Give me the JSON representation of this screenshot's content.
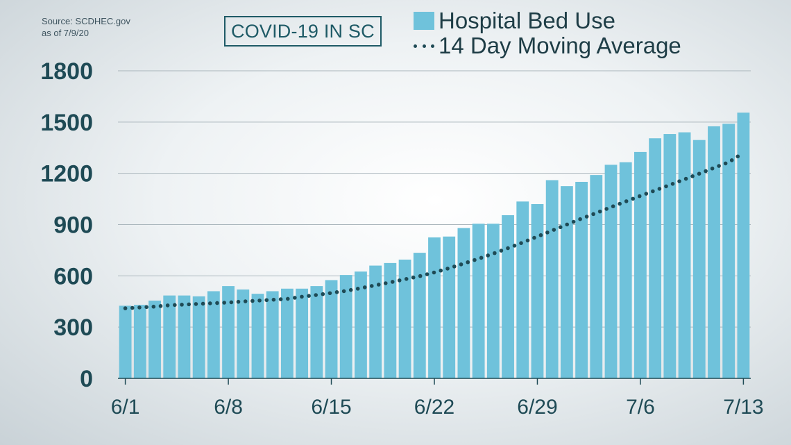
{
  "source_line1": "Source: SCDHEC.gov",
  "source_line2": "as of 7/9/20",
  "title": "COVID-19 IN SC",
  "colors": {
    "bar": "#6fc2db",
    "average": "#1e4a55",
    "axis_text": "#1e4a55",
    "grid": "#aab6bc"
  },
  "chart_data": {
    "type": "bar",
    "ylim": [
      0,
      1800
    ],
    "yticks": [
      0,
      300,
      600,
      900,
      1200,
      1500,
      1800
    ],
    "x_tick_labels": [
      "6/1",
      "6/8",
      "6/15",
      "6/22",
      "6/29",
      "7/6",
      "7/13"
    ],
    "x_tick_indices": [
      0,
      7,
      14,
      21,
      28,
      35,
      42
    ],
    "grid": true,
    "legend_position": "top",
    "series": [
      {
        "name": "Hospital Bed Use",
        "type": "bar",
        "values": [
          425,
          430,
          455,
          485,
          485,
          480,
          510,
          540,
          520,
          495,
          510,
          525,
          525,
          540,
          575,
          605,
          625,
          660,
          675,
          695,
          735,
          825,
          830,
          880,
          905,
          905,
          955,
          1035,
          1020,
          1160,
          1125,
          1150,
          1190,
          1250,
          1265,
          1325,
          1405,
          1430,
          1440,
          1395,
          1475,
          1490,
          1555
        ]
      },
      {
        "name": "14 Day Moving Average",
        "type": "line",
        "style": "dotted",
        "values": [
          410,
          415,
          420,
          428,
          432,
          436,
          440,
          444,
          450,
          455,
          460,
          465,
          478,
          488,
          500,
          512,
          528,
          545,
          562,
          580,
          598,
          620,
          645,
          672,
          700,
          730,
          762,
          795,
          830,
          865,
          900,
          935,
          968,
          1002,
          1035,
          1068,
          1100,
          1132,
          1165,
          1198,
          1232,
          1265,
          1320
        ]
      }
    ]
  }
}
